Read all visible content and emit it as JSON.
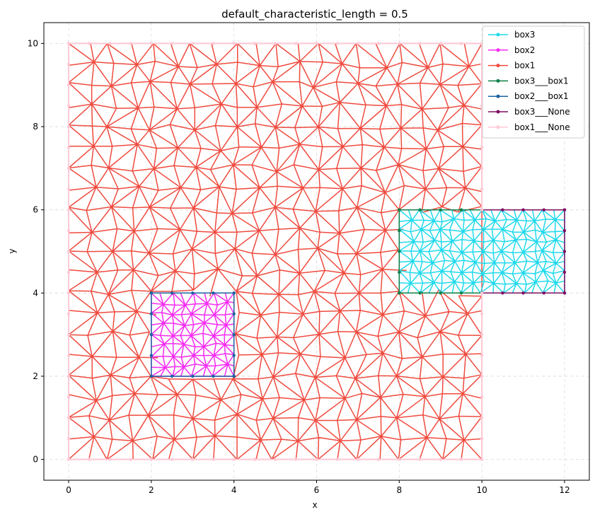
{
  "chart_data": {
    "type": "line",
    "title": "default_characteristic_length = 0.5",
    "xlabel": "x",
    "ylabel": "y",
    "xlim": [
      -0.6,
      12.6
    ],
    "ylim": [
      -0.5,
      10.5
    ],
    "xticks": [
      0,
      2,
      4,
      6,
      8,
      10,
      12
    ],
    "yticks": [
      0,
      2,
      4,
      6,
      8,
      10
    ],
    "grid": true,
    "legend_position": "top-right",
    "mesh_spacing": 0.5,
    "series": [
      {
        "name": "box3",
        "color": "#1fd9ec",
        "region": [
          8,
          4,
          12,
          6
        ]
      },
      {
        "name": "box2",
        "color": "#f52bf2",
        "region": [
          2,
          2,
          4,
          4
        ]
      },
      {
        "name": "box1",
        "color": "#f04b3f",
        "region": [
          0,
          0,
          10,
          10
        ],
        "holes": [
          [
            2,
            2,
            4,
            4
          ],
          [
            8,
            4,
            10,
            6
          ]
        ]
      },
      {
        "name": "box3___box1",
        "color": "#0e7f47",
        "polyline": [
          [
            10,
            4
          ],
          [
            8,
            4
          ],
          [
            8,
            6
          ],
          [
            10,
            6
          ]
        ]
      },
      {
        "name": "box2___box1",
        "color": "#1c63a0",
        "polyline": [
          [
            2,
            2
          ],
          [
            4,
            2
          ],
          [
            4,
            4
          ],
          [
            2,
            4
          ],
          [
            2,
            2
          ]
        ]
      },
      {
        "name": "box3___None",
        "color": "#7f0d63",
        "polyline": [
          [
            10,
            6
          ],
          [
            12,
            6
          ],
          [
            12,
            4
          ],
          [
            10,
            4
          ]
        ]
      },
      {
        "name": "box1___None",
        "color": "#ffc9d6",
        "polyline": [
          [
            10,
            6
          ],
          [
            10,
            10
          ],
          [
            0,
            10
          ],
          [
            0,
            0
          ],
          [
            10,
            0
          ],
          [
            10,
            4
          ]
        ]
      }
    ]
  }
}
